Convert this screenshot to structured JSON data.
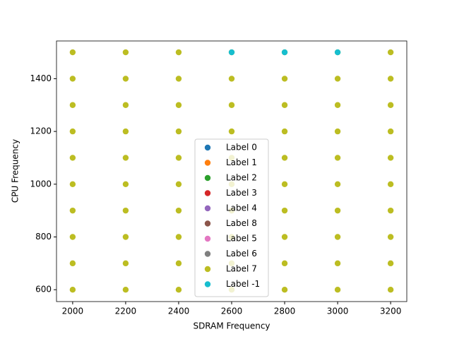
{
  "chart_data": {
    "type": "scatter",
    "xlabel": "SDRAM Frequency",
    "ylabel": "CPU Frequency",
    "xlim": [
      1939,
      3261
    ],
    "ylim": [
      555,
      1543
    ],
    "xticks": [
      2000,
      2200,
      2400,
      2600,
      2800,
      3000,
      3200
    ],
    "yticks": [
      600,
      800,
      1000,
      1200,
      1400
    ],
    "legend": "lower center",
    "series": [
      {
        "name": "Label 0",
        "color": "#1f77b4",
        "x": [],
        "values": []
      },
      {
        "name": "Label 1",
        "color": "#ff7f0e",
        "x": [],
        "values": []
      },
      {
        "name": "Label 2",
        "color": "#2ca02c",
        "x": [],
        "values": []
      },
      {
        "name": "Label 3",
        "color": "#d62728",
        "x": [],
        "values": []
      },
      {
        "name": "Label 4",
        "color": "#9467bd",
        "x": [],
        "values": []
      },
      {
        "name": "Label 8",
        "color": "#8c564b",
        "x": [],
        "values": []
      },
      {
        "name": "Label 5",
        "color": "#e377c2",
        "x": [],
        "values": []
      },
      {
        "name": "Label 6",
        "color": "#7f7f7f",
        "x": [],
        "values": []
      },
      {
        "name": "Label 7",
        "color": "#bcbd22",
        "x": [
          2000,
          2000,
          2000,
          2000,
          2000,
          2000,
          2000,
          2000,
          2000,
          2000,
          2200,
          2200,
          2200,
          2200,
          2200,
          2200,
          2200,
          2200,
          2200,
          2200,
          2400,
          2400,
          2400,
          2400,
          2400,
          2400,
          2400,
          2400,
          2400,
          2400,
          2600,
          2600,
          2600,
          2600,
          2600,
          2600,
          2600,
          2600,
          2600,
          2600,
          2800,
          2800,
          2800,
          2800,
          2800,
          2800,
          2800,
          2800,
          2800,
          2800,
          3000,
          3000,
          3000,
          3000,
          3000,
          3000,
          3000,
          3000,
          3000,
          3000,
          3200,
          3200,
          3200,
          3200,
          3200,
          3200,
          3200,
          3200,
          3200,
          3200
        ],
        "values": [
          600,
          700,
          800,
          900,
          1000,
          1100,
          1200,
          1300,
          1400,
          1500,
          600,
          700,
          800,
          900,
          1000,
          1100,
          1200,
          1300,
          1400,
          1500,
          600,
          700,
          800,
          900,
          1000,
          1100,
          1200,
          1300,
          1400,
          1500,
          600,
          700,
          800,
          900,
          1000,
          1100,
          1200,
          1300,
          1400,
          1500,
          600,
          700,
          800,
          900,
          1000,
          1100,
          1200,
          1300,
          1400,
          1500,
          600,
          700,
          800,
          900,
          1000,
          1100,
          1200,
          1300,
          1400,
          1500,
          600,
          700,
          800,
          900,
          1000,
          1100,
          1200,
          1300,
          1400,
          1500
        ]
      },
      {
        "name": "Label -1",
        "color": "#17becf",
        "x": [
          2600,
          2800,
          3000
        ],
        "values": [
          1500,
          1500,
          1500
        ]
      }
    ]
  }
}
